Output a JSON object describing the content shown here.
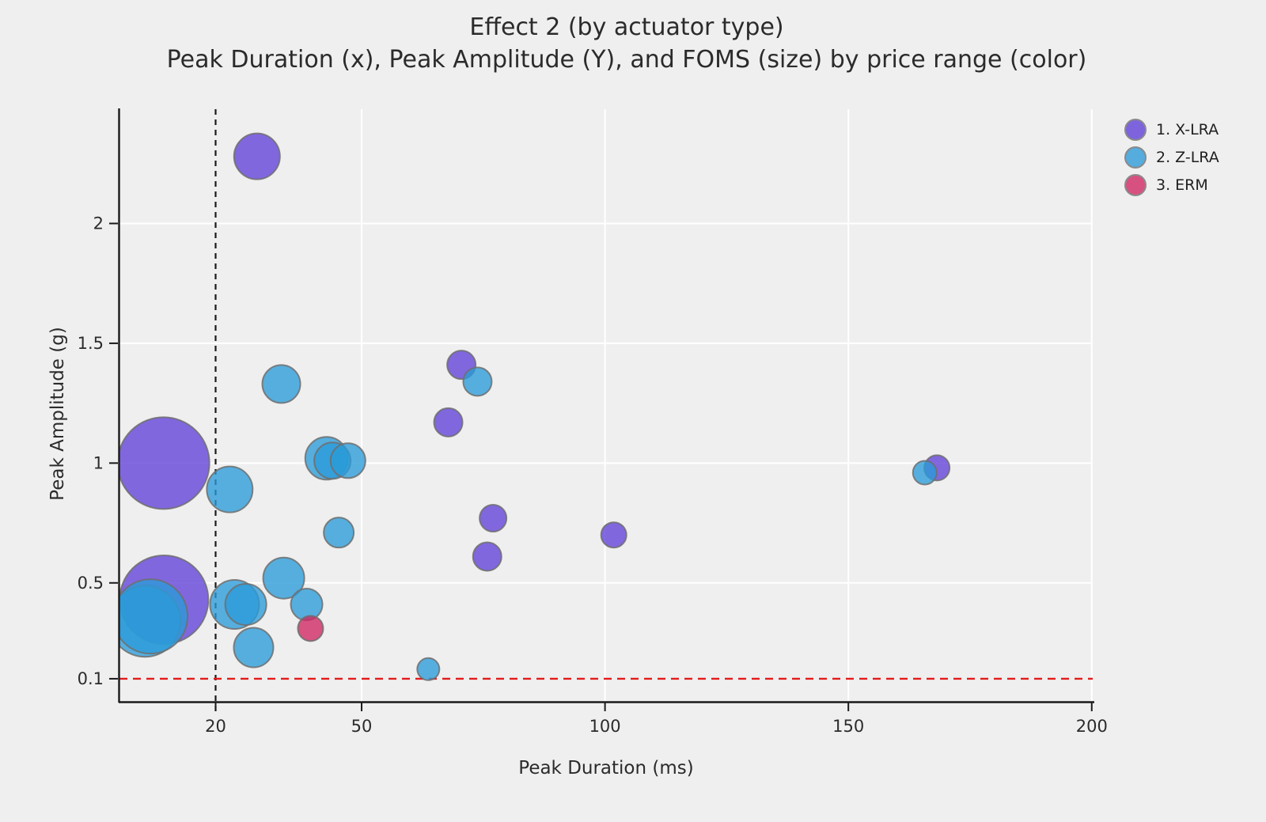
{
  "title": {
    "line1": "Effect 2 (by actuator type)",
    "line2": "Peak Duration (x), Peak Amplitude (Y), and FOMS (size) by price range (color)"
  },
  "legend": {
    "items": [
      {
        "label": "1. X-LRA",
        "color": "#7E64DC"
      },
      {
        "label": "2. Z-LRA",
        "color": "#55ACDD"
      },
      {
        "label": "3. ERM",
        "color": "#D75180"
      }
    ]
  },
  "chart_data": {
    "type": "scatter",
    "title": "Effect 2 (by actuator type)",
    "subtitle": "Peak Duration (x), Peak Amplitude (Y), and FOMS (size) by price range (color)",
    "xlabel": "Peak Duration (ms)",
    "ylabel": "Peak Amplitude (g)",
    "size_meaning": "FOMS",
    "color_meaning": "actuator type",
    "xlim": [
      0.25,
      200.2
    ],
    "ylim": [
      0.004,
      2.477
    ],
    "x_ticks": [
      20,
      50,
      100,
      150,
      200
    ],
    "y_ticks": [
      0.1,
      0.5,
      1,
      1.5,
      2
    ],
    "grid": true,
    "legend_position": "top-right",
    "fill_opacity": 0.78,
    "stroke_color": "#6e6e6e",
    "grid_color": "#ffffff",
    "axis_color": "#1a1a1a",
    "background_color": "#efefef",
    "reference_lines": {
      "vline_x": 20,
      "vline_color": "#1a1a1a",
      "vline_style": "dashed",
      "hline_y": 0.1,
      "hline_color": "#E31A1A",
      "hline_style": "dashed"
    },
    "series": [
      {
        "name": "1. X-LRA",
        "fill": "#6040D8",
        "points": [
          {
            "x": 28.5,
            "y": 2.28,
            "r": 29
          },
          {
            "x": 9.3,
            "y": 1.0,
            "r": 58
          },
          {
            "x": 70.5,
            "y": 1.41,
            "r": 18
          },
          {
            "x": 67.8,
            "y": 1.17,
            "r": 18
          },
          {
            "x": 77.0,
            "y": 0.77,
            "r": 17
          },
          {
            "x": 75.8,
            "y": 0.61,
            "r": 18
          },
          {
            "x": 101.8,
            "y": 0.7,
            "r": 16
          },
          {
            "x": 168.2,
            "y": 0.98,
            "r": 16
          },
          {
            "x": 9.4,
            "y": 0.43,
            "r": 56
          }
        ]
      },
      {
        "name": "2. Z-LRA",
        "fill": "#2A9BD8",
        "points": [
          {
            "x": 5.5,
            "y": 0.34,
            "r": 45
          },
          {
            "x": 6.6,
            "y": 0.36,
            "r": 47
          },
          {
            "x": 33.5,
            "y": 1.33,
            "r": 24
          },
          {
            "x": 73.8,
            "y": 1.34,
            "r": 18
          },
          {
            "x": 22.9,
            "y": 0.89,
            "r": 29
          },
          {
            "x": 42.8,
            "y": 1.02,
            "r": 27
          },
          {
            "x": 44.0,
            "y": 1.01,
            "r": 23
          },
          {
            "x": 47.2,
            "y": 1.01,
            "r": 22
          },
          {
            "x": 45.3,
            "y": 0.71,
            "r": 19
          },
          {
            "x": 23.9,
            "y": 0.41,
            "r": 31
          },
          {
            "x": 26.2,
            "y": 0.41,
            "r": 26
          },
          {
            "x": 34.0,
            "y": 0.52,
            "r": 26
          },
          {
            "x": 38.7,
            "y": 0.41,
            "r": 20
          },
          {
            "x": 27.8,
            "y": 0.23,
            "r": 25
          },
          {
            "x": 63.7,
            "y": 0.14,
            "r": 14
          },
          {
            "x": 165.7,
            "y": 0.96,
            "r": 15
          }
        ]
      },
      {
        "name": "3. ERM",
        "fill": "#D02560",
        "points": [
          {
            "x": 39.5,
            "y": 0.31,
            "r": 16
          }
        ]
      }
    ]
  }
}
